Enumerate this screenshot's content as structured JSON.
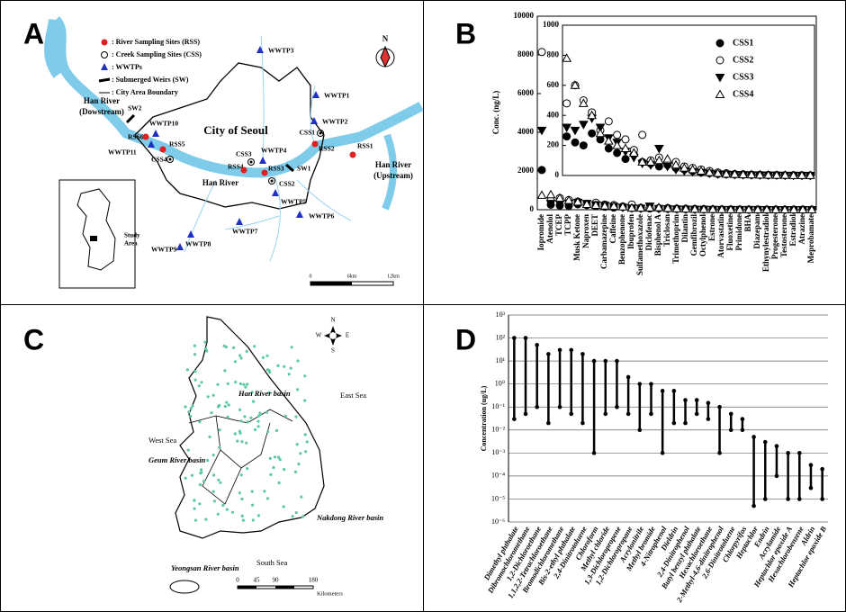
{
  "panel_letters": [
    "A",
    "B",
    "C",
    "D"
  ],
  "map_a": {
    "legend": [
      ": River Sampling Sites (RSS)",
      ": Creek Sampling Sites (CSS)",
      ": WWTPs",
      ": Submerged Weirs (SW)",
      ": City Area Boundary"
    ],
    "labels": [
      "Han River",
      "(Dowstream)",
      "City of Seoul",
      "Han River",
      "Han River",
      "(Upstream)",
      "Study",
      "Area",
      "WWTP1",
      "WWTP2",
      "WWTP3",
      "WWTP4",
      "WWTP5",
      "WWTP6",
      "WWTP7",
      "WWTP8",
      "WWTP9",
      "WWTP10",
      "WWTP11",
      "RSS1",
      "RSS2",
      "RSS3",
      "RSS4",
      "RSS5",
      "RSS6",
      "CSS1",
      "CSS2",
      "CSS3",
      "CSS4",
      "SW1",
      "SW2"
    ],
    "north": "N",
    "scale": [
      "0",
      "6km",
      "12km"
    ]
  },
  "map_c": {
    "labels": [
      "Han River basin",
      "East Sea",
      "West Sea",
      "Geum River basin",
      "Nakdong River basin",
      "South Sea",
      "Yeongsan River basin"
    ],
    "compass": [
      "N",
      "W",
      "E",
      "S"
    ],
    "scale": [
      "0",
      "45",
      "90",
      "180"
    ],
    "scale_unit": "Kilometers"
  },
  "chart_data": [
    {
      "type": "scatter",
      "ylabel": "Conc. (ng/L)",
      "categories": [
        "Iopromide",
        "Atenolol",
        "TCEP",
        "TCPP",
        "Musk Ketone",
        "Naproxen",
        "DEET",
        "Carbamazepine",
        "Caffeine",
        "Benzophenone",
        "Ibuprofen",
        "Sulfamethoxazole",
        "Diclofenac",
        "Bisphenol A",
        "Triclosan",
        "Trimethoprim",
        "Dilantin",
        "Gemfibrozil",
        "Octylphenol",
        "Estrone",
        "Atorvastatin",
        "Fluoxetine",
        "Primidone",
        "BHA",
        "Diazepam",
        "Ethynylestradiol",
        "Progesterone",
        "Testosterone",
        "Estradiol",
        "Atrazine",
        "Meprobamate"
      ],
      "ylim": [
        0,
        10000
      ],
      "yticks": [
        0,
        2000,
        4000,
        6000,
        8000,
        10000
      ],
      "inset": {
        "ylim": [
          0,
          1000
        ],
        "yticks": [
          0,
          200,
          400,
          600,
          800,
          1000
        ]
      },
      "series": [
        {
          "name": "CSS1",
          "color": "#000000",
          "marker": "circle-filled",
          "values": [
            2050,
            260,
            220,
            200,
            280,
            240,
            180,
            150,
            110,
            140,
            90,
            80,
            60,
            70,
            50,
            40,
            30,
            20,
            15,
            10,
            8,
            6,
            5,
            4,
            3,
            2,
            2,
            1,
            1,
            1,
            0
          ]
        },
        {
          "name": "CSS2",
          "color": "#000000",
          "marker": "circle-open",
          "values": [
            8150,
            480,
            600,
            500,
            420,
            300,
            360,
            270,
            240,
            170,
            270,
            100,
            120,
            80,
            90,
            60,
            50,
            40,
            30,
            20,
            15,
            10,
            8,
            6,
            5,
            4,
            3,
            2,
            2,
            1,
            1
          ]
        },
        {
          "name": "CSS3",
          "color": "#000000",
          "marker": "triangle-down-filled",
          "values": [
            4100,
            320,
            300,
            340,
            380,
            320,
            250,
            220,
            160,
            120,
            80,
            70,
            180,
            60,
            40,
            30,
            25,
            20,
            15,
            10,
            8,
            6,
            5,
            4,
            3,
            2,
            2,
            1,
            1,
            1,
            0
          ]
        },
        {
          "name": "CSS4",
          "color": "#000000",
          "marker": "triangle-up-open",
          "values": [
            750,
            780,
            600,
            480,
            400,
            280,
            230,
            200,
            180,
            150,
            90,
            90,
            100,
            110,
            70,
            50,
            40,
            30,
            20,
            15,
            10,
            8,
            6,
            5,
            4,
            3,
            2,
            2,
            1,
            1,
            1
          ]
        }
      ]
    },
    {
      "type": "range",
      "ylabel": "Concentration (ug/L)",
      "log_scale": true,
      "grid": true,
      "color": "#000000",
      "categories": [
        "Dimethyl phthalate",
        "Dibromochloromethane",
        "1,2-Dichloroethane",
        "1,1,2,2-Tetrachloroethane",
        "Bromodichloromethane",
        "Bis-2-ethyl phthalate",
        "2,4-Dinitrotoluene",
        "Chloroform",
        "Methyl chloride",
        "1,3-Dichloropropene",
        "1,2-Dichloropropane",
        "Acrylonitrile",
        "Methyl bromide",
        "4-Nitrophenol",
        "Dieldrin",
        "2,4-Dinitrophenol",
        "Butyl benzyl phthalate",
        "Hexachloroethane",
        "2-Methyl-4,6-dinitrophenol",
        "2,6-Dinitrotoluene",
        "Chlorpyrifos",
        "Heptachlor",
        "Endrin",
        "Acrylamide",
        "Heptachlor epoxide A",
        "Hexachlorobenzene",
        "Aldrin",
        "Heptachlor epoxide B"
      ],
      "values": [
        [
          0.03,
          100
        ],
        [
          0.05,
          100
        ],
        [
          0.1,
          50
        ],
        [
          0.02,
          20
        ],
        [
          0.1,
          30
        ],
        [
          0.05,
          30
        ],
        [
          0.02,
          20
        ],
        [
          0.001,
          10
        ],
        [
          0.05,
          10
        ],
        [
          0.1,
          10
        ],
        [
          0.05,
          2
        ],
        [
          0.01,
          1
        ],
        [
          0.05,
          1
        ],
        [
          0.001,
          0.5
        ],
        [
          0.02,
          0.5
        ],
        [
          0.02,
          0.2
        ],
        [
          0.05,
          0.2
        ],
        [
          0.03,
          0.15
        ],
        [
          0.001,
          0.1
        ],
        [
          0.01,
          0.05
        ],
        [
          0.01,
          0.03
        ],
        [
          5e-06,
          0.005
        ],
        [
          1e-05,
          0.003
        ],
        [
          0.0001,
          0.002
        ],
        [
          1e-05,
          0.001
        ],
        [
          1e-05,
          0.001
        ],
        [
          3e-05,
          0.0003
        ],
        [
          1e-05,
          0.0002
        ]
      ],
      "ylim": [
        1e-06,
        1000
      ],
      "yticks": [
        {
          "value": 1e-06,
          "label": "10⁻⁶"
        },
        {
          "value": 1e-05,
          "label": "10⁻⁵"
        },
        {
          "value": 0.0001,
          "label": "10⁻⁴"
        },
        {
          "value": 0.001,
          "label": "10⁻³"
        },
        {
          "value": 0.01,
          "label": "10⁻²"
        },
        {
          "value": 0.1,
          "label": "10⁻¹"
        },
        {
          "value": 1,
          "label": "10⁰"
        },
        {
          "value": 10,
          "label": "10¹"
        },
        {
          "value": 100,
          "label": "10²"
        },
        {
          "value": 1000,
          "label": "10³"
        }
      ]
    }
  ]
}
